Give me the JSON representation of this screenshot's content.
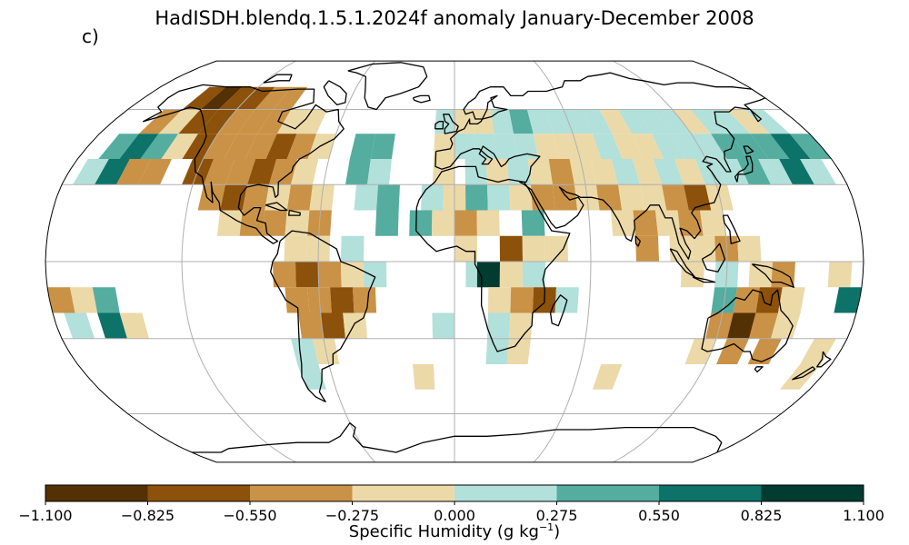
{
  "title": "HadISDH.blendq.1.5.1.2024f anomaly January-December 2008",
  "panel_label": "c)",
  "colorbar": {
    "label_main": "Specific Humidity (g kg",
    "label_sup": "−1",
    "label_end": ")",
    "ticks": [
      "−1.100",
      "−0.825",
      "−0.550",
      "−0.275",
      "0.000",
      "0.275",
      "0.550",
      "0.825",
      "1.100"
    ],
    "colors": [
      "#543005",
      "#8c510a",
      "#c99246",
      "#ecd9a8",
      "#b2e0da",
      "#54ad9f",
      "#0d7268",
      "#003c30"
    ]
  },
  "map": {
    "projection": "robinson",
    "variable": "specific humidity anomaly",
    "cells": [
      {
        "lon": -145,
        "lat": 65,
        "bin": 1
      },
      {
        "lon": -135,
        "lat": 65,
        "bin": 0
      },
      {
        "lon": -125,
        "lat": 65,
        "bin": 1
      },
      {
        "lon": -115,
        "lat": 65,
        "bin": 1
      },
      {
        "lon": -105,
        "lat": 65,
        "bin": 2
      },
      {
        "lon": -95,
        "lat": 65,
        "bin": 2
      },
      {
        "lon": -155,
        "lat": 55,
        "bin": 2
      },
      {
        "lon": -145,
        "lat": 55,
        "bin": 3
      },
      {
        "lon": -135,
        "lat": 55,
        "bin": 1
      },
      {
        "lon": -125,
        "lat": 55,
        "bin": 1
      },
      {
        "lon": -115,
        "lat": 55,
        "bin": 2
      },
      {
        "lon": -105,
        "lat": 55,
        "bin": 2
      },
      {
        "lon": -95,
        "lat": 55,
        "bin": 2
      },
      {
        "lon": -85,
        "lat": 55,
        "bin": 3
      },
      {
        "lon": -75,
        "lat": 55,
        "bin": 3
      },
      {
        "lon": -165,
        "lat": 45,
        "bin": 5
      },
      {
        "lon": -155,
        "lat": 45,
        "bin": 6
      },
      {
        "lon": -145,
        "lat": 45,
        "bin": 5
      },
      {
        "lon": -135,
        "lat": 45,
        "bin": 3
      },
      {
        "lon": -125,
        "lat": 45,
        "bin": 1
      },
      {
        "lon": -115,
        "lat": 45,
        "bin": 2
      },
      {
        "lon": -105,
        "lat": 45,
        "bin": 2
      },
      {
        "lon": -95,
        "lat": 45,
        "bin": 2
      },
      {
        "lon": -85,
        "lat": 45,
        "bin": 1
      },
      {
        "lon": -75,
        "lat": 45,
        "bin": 2
      },
      {
        "lon": -65,
        "lat": 45,
        "bin": 3
      },
      {
        "lon": -45,
        "lat": 45,
        "bin": 5
      },
      {
        "lon": -35,
        "lat": 45,
        "bin": 5
      },
      {
        "lon": -170,
        "lat": 35,
        "bin": 4
      },
      {
        "lon": -160,
        "lat": 35,
        "bin": 6
      },
      {
        "lon": -150,
        "lat": 35,
        "bin": 2
      },
      {
        "lon": -140,
        "lat": 35,
        "bin": 2
      },
      {
        "lon": -120,
        "lat": 35,
        "bin": 1
      },
      {
        "lon": -110,
        "lat": 35,
        "bin": 2
      },
      {
        "lon": -100,
        "lat": 35,
        "bin": 2
      },
      {
        "lon": -90,
        "lat": 35,
        "bin": 1
      },
      {
        "lon": -80,
        "lat": 35,
        "bin": 2
      },
      {
        "lon": -70,
        "lat": 35,
        "bin": 3
      },
      {
        "lon": -45,
        "lat": 35,
        "bin": 5
      },
      {
        "lon": -35,
        "lat": 35,
        "bin": 4
      },
      {
        "lon": -110,
        "lat": 25,
        "bin": 2
      },
      {
        "lon": -100,
        "lat": 25,
        "bin": 1
      },
      {
        "lon": -90,
        "lat": 25,
        "bin": 2
      },
      {
        "lon": -80,
        "lat": 25,
        "bin": 3
      },
      {
        "lon": -70,
        "lat": 25,
        "bin": 2
      },
      {
        "lon": -60,
        "lat": 25,
        "bin": 3
      },
      {
        "lon": -40,
        "lat": 25,
        "bin": 4
      },
      {
        "lon": -30,
        "lat": 25,
        "bin": 5
      },
      {
        "lon": -100,
        "lat": 15,
        "bin": 3
      },
      {
        "lon": -90,
        "lat": 15,
        "bin": 2
      },
      {
        "lon": -80,
        "lat": 15,
        "bin": 2
      },
      {
        "lon": -70,
        "lat": 15,
        "bin": 3
      },
      {
        "lon": -60,
        "lat": 15,
        "bin": 2
      },
      {
        "lon": -30,
        "lat": 15,
        "bin": 5
      },
      {
        "lon": -70,
        "lat": 5,
        "bin": 3
      },
      {
        "lon": -60,
        "lat": 5,
        "bin": 3
      },
      {
        "lon": -45,
        "lat": 5,
        "bin": 4
      },
      {
        "lon": -75,
        "lat": -5,
        "bin": 2
      },
      {
        "lon": -65,
        "lat": -5,
        "bin": 1
      },
      {
        "lon": -55,
        "lat": -5,
        "bin": 2
      },
      {
        "lon": -45,
        "lat": -5,
        "bin": 3
      },
      {
        "lon": -35,
        "lat": -5,
        "bin": 4
      },
      {
        "lon": -70,
        "lat": -15,
        "bin": 2
      },
      {
        "lon": -60,
        "lat": -15,
        "bin": 2
      },
      {
        "lon": -50,
        "lat": -15,
        "bin": 1
      },
      {
        "lon": -40,
        "lat": -15,
        "bin": 2
      },
      {
        "lon": -65,
        "lat": -25,
        "bin": 2
      },
      {
        "lon": -55,
        "lat": -25,
        "bin": 1
      },
      {
        "lon": -45,
        "lat": -25,
        "bin": 3
      },
      {
        "lon": -70,
        "lat": -35,
        "bin": 4
      },
      {
        "lon": -60,
        "lat": -35,
        "bin": 3
      },
      {
        "lon": -70,
        "lat": -45,
        "bin": 4
      },
      {
        "lon": -175,
        "lat": -15,
        "bin": 2
      },
      {
        "lon": -165,
        "lat": -15,
        "bin": 3
      },
      {
        "lon": -155,
        "lat": -15,
        "bin": 5
      },
      {
        "lon": -170,
        "lat": -25,
        "bin": 4
      },
      {
        "lon": -155,
        "lat": -25,
        "bin": 6
      },
      {
        "lon": -145,
        "lat": -25,
        "bin": 3
      },
      {
        "lon": -5,
        "lat": 55,
        "bin": 4
      },
      {
        "lon": 5,
        "lat": 55,
        "bin": 3
      },
      {
        "lon": 15,
        "lat": 55,
        "bin": 3
      },
      {
        "lon": 25,
        "lat": 55,
        "bin": 4
      },
      {
        "lon": 35,
        "lat": 55,
        "bin": 5
      },
      {
        "lon": 45,
        "lat": 55,
        "bin": 4
      },
      {
        "lon": 55,
        "lat": 55,
        "bin": 4
      },
      {
        "lon": 65,
        "lat": 55,
        "bin": 4
      },
      {
        "lon": 75,
        "lat": 55,
        "bin": 4
      },
      {
        "lon": 85,
        "lat": 55,
        "bin": 3
      },
      {
        "lon": 95,
        "lat": 55,
        "bin": 4
      },
      {
        "lon": 105,
        "lat": 55,
        "bin": 4
      },
      {
        "lon": 115,
        "lat": 55,
        "bin": 4
      },
      {
        "lon": 125,
        "lat": 55,
        "bin": 3
      },
      {
        "lon": 135,
        "lat": 55,
        "bin": 4
      },
      {
        "lon": 145,
        "lat": 55,
        "bin": 4
      },
      {
        "lon": 155,
        "lat": 55,
        "bin": 3
      },
      {
        "lon": 165,
        "lat": 55,
        "bin": 4
      },
      {
        "lon": -5,
        "lat": 45,
        "bin": 3
      },
      {
        "lon": 5,
        "lat": 45,
        "bin": 4
      },
      {
        "lon": 15,
        "lat": 45,
        "bin": 4
      },
      {
        "lon": 25,
        "lat": 45,
        "bin": 4
      },
      {
        "lon": 35,
        "lat": 45,
        "bin": 4
      },
      {
        "lon": 45,
        "lat": 45,
        "bin": 3
      },
      {
        "lon": 55,
        "lat": 45,
        "bin": 3
      },
      {
        "lon": 65,
        "lat": 45,
        "bin": 3
      },
      {
        "lon": 75,
        "lat": 45,
        "bin": 4
      },
      {
        "lon": 85,
        "lat": 45,
        "bin": 3
      },
      {
        "lon": 95,
        "lat": 45,
        "bin": 3
      },
      {
        "lon": 105,
        "lat": 45,
        "bin": 4
      },
      {
        "lon": 115,
        "lat": 45,
        "bin": 4
      },
      {
        "lon": 125,
        "lat": 45,
        "bin": 4
      },
      {
        "lon": 135,
        "lat": 45,
        "bin": 5
      },
      {
        "lon": 145,
        "lat": 45,
        "bin": 5
      },
      {
        "lon": 155,
        "lat": 45,
        "bin": 5
      },
      {
        "lon": 165,
        "lat": 45,
        "bin": 6
      },
      {
        "lon": 175,
        "lat": 45,
        "bin": 5
      },
      {
        "lon": -5,
        "lat": 35,
        "bin": 3
      },
      {
        "lon": 10,
        "lat": 35,
        "bin": 4
      },
      {
        "lon": 20,
        "lat": 35,
        "bin": 3
      },
      {
        "lon": 30,
        "lat": 35,
        "bin": 4
      },
      {
        "lon": 40,
        "lat": 35,
        "bin": 3
      },
      {
        "lon": 50,
        "lat": 35,
        "bin": 2
      },
      {
        "lon": 60,
        "lat": 35,
        "bin": 3
      },
      {
        "lon": 70,
        "lat": 35,
        "bin": 3
      },
      {
        "lon": 80,
        "lat": 35,
        "bin": 4
      },
      {
        "lon": 90,
        "lat": 35,
        "bin": 3
      },
      {
        "lon": 100,
        "lat": 35,
        "bin": 4
      },
      {
        "lon": 110,
        "lat": 35,
        "bin": 3
      },
      {
        "lon": 120,
        "lat": 35,
        "bin": 4
      },
      {
        "lon": 130,
        "lat": 35,
        "bin": 4
      },
      {
        "lon": 140,
        "lat": 35,
        "bin": 5
      },
      {
        "lon": 150,
        "lat": 35,
        "bin": 4
      },
      {
        "lon": 160,
        "lat": 35,
        "bin": 6
      },
      {
        "lon": 170,
        "lat": 35,
        "bin": 4
      },
      {
        "lon": -10,
        "lat": 25,
        "bin": 4
      },
      {
        "lon": 0,
        "lat": 25,
        "bin": 3
      },
      {
        "lon": 10,
        "lat": 25,
        "bin": 5
      },
      {
        "lon": 20,
        "lat": 25,
        "bin": 4
      },
      {
        "lon": 30,
        "lat": 25,
        "bin": 3
      },
      {
        "lon": 40,
        "lat": 25,
        "bin": 2
      },
      {
        "lon": 50,
        "lat": 25,
        "bin": 2
      },
      {
        "lon": 60,
        "lat": 25,
        "bin": 3
      },
      {
        "lon": 70,
        "lat": 25,
        "bin": 2
      },
      {
        "lon": 80,
        "lat": 25,
        "bin": 3
      },
      {
        "lon": 90,
        "lat": 25,
        "bin": 3
      },
      {
        "lon": 100,
        "lat": 25,
        "bin": 2
      },
      {
        "lon": 110,
        "lat": 25,
        "bin": 1
      },
      {
        "lon": 120,
        "lat": 25,
        "bin": 3
      },
      {
        "lon": -15,
        "lat": 15,
        "bin": 5
      },
      {
        "lon": -5,
        "lat": 15,
        "bin": 3
      },
      {
        "lon": 5,
        "lat": 15,
        "bin": 2
      },
      {
        "lon": 15,
        "lat": 15,
        "bin": 3
      },
      {
        "lon": 35,
        "lat": 15,
        "bin": 5
      },
      {
        "lon": 75,
        "lat": 15,
        "bin": 3
      },
      {
        "lon": 85,
        "lat": 15,
        "bin": 2
      },
      {
        "lon": 95,
        "lat": 15,
        "bin": 3
      },
      {
        "lon": 105,
        "lat": 15,
        "bin": 2
      },
      {
        "lon": 115,
        "lat": 15,
        "bin": 3
      },
      {
        "lon": 5,
        "lat": 5,
        "bin": 3
      },
      {
        "lon": 25,
        "lat": 5,
        "bin": 1
      },
      {
        "lon": 35,
        "lat": 5,
        "bin": 3
      },
      {
        "lon": 45,
        "lat": 5,
        "bin": 3
      },
      {
        "lon": 85,
        "lat": 5,
        "bin": 2
      },
      {
        "lon": 100,
        "lat": 5,
        "bin": 3
      },
      {
        "lon": 110,
        "lat": 5,
        "bin": 3
      },
      {
        "lon": 120,
        "lat": 5,
        "bin": 2
      },
      {
        "lon": 130,
        "lat": 5,
        "bin": 3
      },
      {
        "lon": 10,
        "lat": -5,
        "bin": 4
      },
      {
        "lon": 15,
        "lat": -5,
        "bin": 7
      },
      {
        "lon": 25,
        "lat": -5,
        "bin": 3
      },
      {
        "lon": 35,
        "lat": -5,
        "bin": 4
      },
      {
        "lon": 105,
        "lat": -5,
        "bin": 3
      },
      {
        "lon": 120,
        "lat": -5,
        "bin": 4
      },
      {
        "lon": 135,
        "lat": -5,
        "bin": 3
      },
      {
        "lon": 145,
        "lat": -5,
        "bin": 2
      },
      {
        "lon": 170,
        "lat": -5,
        "bin": 3
      },
      {
        "lon": 20,
        "lat": -15,
        "bin": 3
      },
      {
        "lon": 30,
        "lat": -15,
        "bin": 2
      },
      {
        "lon": 40,
        "lat": -15,
        "bin": 1
      },
      {
        "lon": 50,
        "lat": -15,
        "bin": 4
      },
      {
        "lon": 120,
        "lat": -15,
        "bin": 5
      },
      {
        "lon": 130,
        "lat": -15,
        "bin": 2
      },
      {
        "lon": 140,
        "lat": -15,
        "bin": 1
      },
      {
        "lon": 150,
        "lat": -15,
        "bin": 3
      },
      {
        "lon": 175,
        "lat": -15,
        "bin": 6
      },
      {
        "lon": 20,
        "lat": -25,
        "bin": 4
      },
      {
        "lon": 30,
        "lat": -25,
        "bin": 3
      },
      {
        "lon": 120,
        "lat": -25,
        "bin": 2
      },
      {
        "lon": 130,
        "lat": -25,
        "bin": 0
      },
      {
        "lon": 140,
        "lat": -25,
        "bin": 2
      },
      {
        "lon": 150,
        "lat": -25,
        "bin": 3
      },
      {
        "lon": 20,
        "lat": -35,
        "bin": 4
      },
      {
        "lon": 30,
        "lat": -35,
        "bin": 3
      },
      {
        "lon": 115,
        "lat": -35,
        "bin": 3
      },
      {
        "lon": 130,
        "lat": -35,
        "bin": 2
      },
      {
        "lon": 145,
        "lat": -35,
        "bin": 2
      },
      {
        "lon": 170,
        "lat": -35,
        "bin": 3
      },
      {
        "lon": -5,
        "lat": -25,
        "bin": 4
      },
      {
        "lon": -15,
        "lat": -45,
        "bin": 3
      },
      {
        "lon": 75,
        "lat": -45,
        "bin": 3
      },
      {
        "lon": 170,
        "lat": -45,
        "bin": 3
      }
    ]
  }
}
